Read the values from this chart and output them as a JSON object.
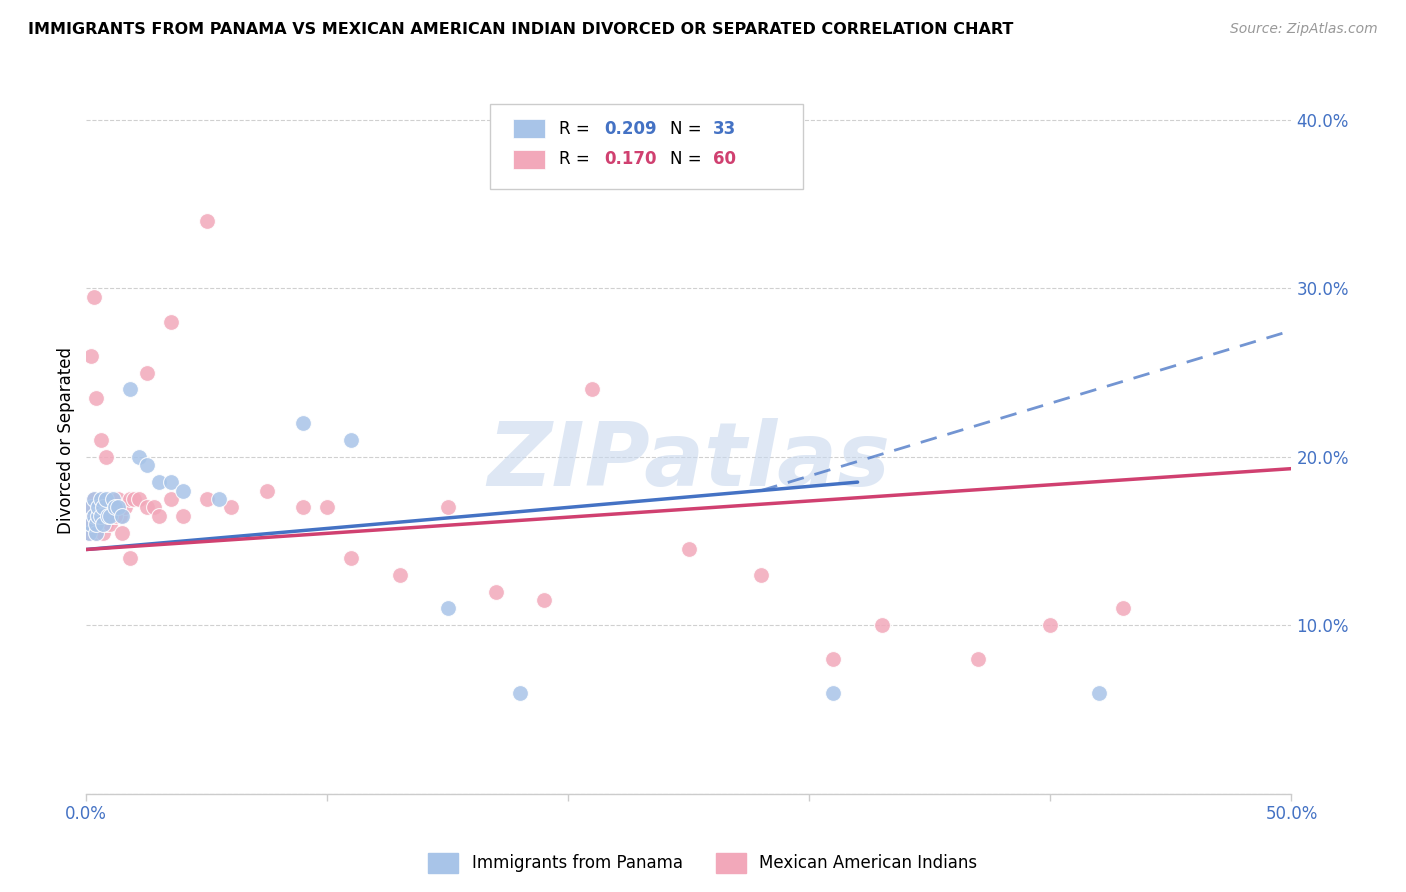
{
  "title": "IMMIGRANTS FROM PANAMA VS MEXICAN AMERICAN INDIAN DIVORCED OR SEPARATED CORRELATION CHART",
  "source": "Source: ZipAtlas.com",
  "ylabel": "Divorced or Separated",
  "xlim": [
    0.0,
    0.5
  ],
  "ylim": [
    0.0,
    0.42
  ],
  "watermark": "ZIPatlas",
  "legend_R1": "0.209",
  "legend_N1": "33",
  "legend_R2": "0.170",
  "legend_N2": "60",
  "color_blue": "#A8C4E8",
  "color_pink": "#F2A8BA",
  "color_line_blue": "#4472C4",
  "color_line_pink": "#D04070",
  "color_axis": "#4472C4",
  "panama_x": [
    0.001,
    0.002,
    0.002,
    0.003,
    0.003,
    0.004,
    0.004,
    0.005,
    0.005,
    0.006,
    0.006,
    0.007,
    0.007,
    0.008,
    0.009,
    0.01,
    0.011,
    0.012,
    0.013,
    0.015,
    0.018,
    0.022,
    0.025,
    0.03,
    0.035,
    0.04,
    0.055,
    0.09,
    0.11,
    0.15,
    0.18,
    0.31,
    0.42
  ],
  "panama_y": [
    0.155,
    0.16,
    0.17,
    0.165,
    0.175,
    0.155,
    0.16,
    0.165,
    0.17,
    0.175,
    0.165,
    0.16,
    0.17,
    0.175,
    0.165,
    0.165,
    0.175,
    0.17,
    0.17,
    0.165,
    0.24,
    0.2,
    0.195,
    0.185,
    0.185,
    0.18,
    0.175,
    0.22,
    0.21,
    0.11,
    0.06,
    0.06,
    0.06
  ],
  "mexican_x": [
    0.001,
    0.002,
    0.002,
    0.003,
    0.003,
    0.004,
    0.004,
    0.005,
    0.005,
    0.006,
    0.006,
    0.007,
    0.007,
    0.008,
    0.008,
    0.009,
    0.01,
    0.01,
    0.011,
    0.012,
    0.013,
    0.014,
    0.015,
    0.016,
    0.018,
    0.02,
    0.022,
    0.025,
    0.028,
    0.03,
    0.035,
    0.04,
    0.05,
    0.06,
    0.075,
    0.09,
    0.1,
    0.11,
    0.13,
    0.15,
    0.17,
    0.19,
    0.21,
    0.25,
    0.28,
    0.31,
    0.33,
    0.37,
    0.4,
    0.43,
    0.002,
    0.003,
    0.004,
    0.006,
    0.008,
    0.012,
    0.018,
    0.025,
    0.035,
    0.05
  ],
  "mexican_y": [
    0.155,
    0.16,
    0.17,
    0.165,
    0.175,
    0.155,
    0.16,
    0.165,
    0.17,
    0.175,
    0.16,
    0.155,
    0.165,
    0.17,
    0.16,
    0.165,
    0.16,
    0.175,
    0.165,
    0.17,
    0.175,
    0.165,
    0.155,
    0.17,
    0.175,
    0.175,
    0.175,
    0.17,
    0.17,
    0.165,
    0.175,
    0.165,
    0.175,
    0.17,
    0.18,
    0.17,
    0.17,
    0.14,
    0.13,
    0.17,
    0.12,
    0.115,
    0.24,
    0.145,
    0.13,
    0.08,
    0.1,
    0.08,
    0.1,
    0.11,
    0.26,
    0.295,
    0.235,
    0.21,
    0.2,
    0.165,
    0.14,
    0.25,
    0.28,
    0.34
  ]
}
